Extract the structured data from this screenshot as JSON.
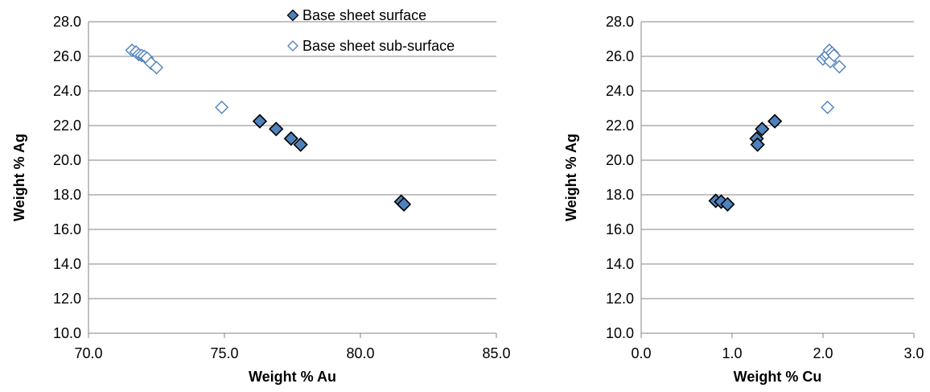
{
  "chart_data": [
    {
      "type": "scatter",
      "xlabel": "Weight % Au",
      "ylabel": "Weight % Ag",
      "xlim": [
        70,
        85
      ],
      "ylim": [
        10,
        28
      ],
      "xticks": [
        "70.0",
        "75.0",
        "80.0",
        "85.0"
      ],
      "yticks": [
        "10.0",
        "12.0",
        "14.0",
        "16.0",
        "18.0",
        "20.0",
        "22.0",
        "24.0",
        "26.0",
        "28.0"
      ],
      "grid": "horizontal",
      "legend_position": "top-right",
      "series": [
        {
          "name": "Base sheet surface",
          "marker": "filled-diamond",
          "color": "#4F81BD",
          "points": [
            [
              76.3,
              22.25
            ],
            [
              76.9,
              21.8
            ],
            [
              77.45,
              21.25
            ],
            [
              77.8,
              20.9
            ],
            [
              81.5,
              17.6
            ],
            [
              81.6,
              17.45
            ]
          ]
        },
        {
          "name": "Base sheet sub-surface",
          "marker": "open-diamond",
          "color": "#4F81BD",
          "points": [
            [
              71.6,
              26.35
            ],
            [
              71.75,
              26.25
            ],
            [
              71.85,
              26.1
            ],
            [
              71.95,
              26.05
            ],
            [
              72.05,
              26.0
            ],
            [
              72.15,
              25.9
            ],
            [
              72.3,
              25.6
            ],
            [
              72.5,
              25.35
            ],
            [
              74.9,
              23.05
            ]
          ]
        }
      ]
    },
    {
      "type": "scatter",
      "xlabel": "Weight % Cu",
      "ylabel": "Weight % Ag",
      "xlim": [
        0,
        3
      ],
      "ylim": [
        10,
        28
      ],
      "xticks": [
        "0.0",
        "1.0",
        "2.0",
        "3.0"
      ],
      "yticks": [
        "10.0",
        "12.0",
        "14.0",
        "16.0",
        "18.0",
        "20.0",
        "22.0",
        "24.0",
        "26.0",
        "28.0"
      ],
      "grid": "horizontal",
      "series": [
        {
          "name": "Base sheet surface",
          "marker": "filled-diamond",
          "color": "#4F81BD",
          "points": [
            [
              0.82,
              17.65
            ],
            [
              0.88,
              17.6
            ],
            [
              0.95,
              17.45
            ],
            [
              1.27,
              21.25
            ],
            [
              1.28,
              20.9
            ],
            [
              1.33,
              21.8
            ],
            [
              1.47,
              22.25
            ]
          ]
        },
        {
          "name": "Base sheet sub-surface",
          "marker": "open-diamond",
          "color": "#4F81BD",
          "points": [
            [
              2.0,
              25.85
            ],
            [
              2.03,
              26.0
            ],
            [
              2.05,
              26.1
            ],
            [
              2.07,
              26.35
            ],
            [
              2.08,
              25.7
            ],
            [
              2.1,
              26.2
            ],
            [
              2.12,
              26.05
            ],
            [
              2.18,
              25.4
            ],
            [
              2.05,
              23.05
            ]
          ]
        }
      ]
    }
  ]
}
